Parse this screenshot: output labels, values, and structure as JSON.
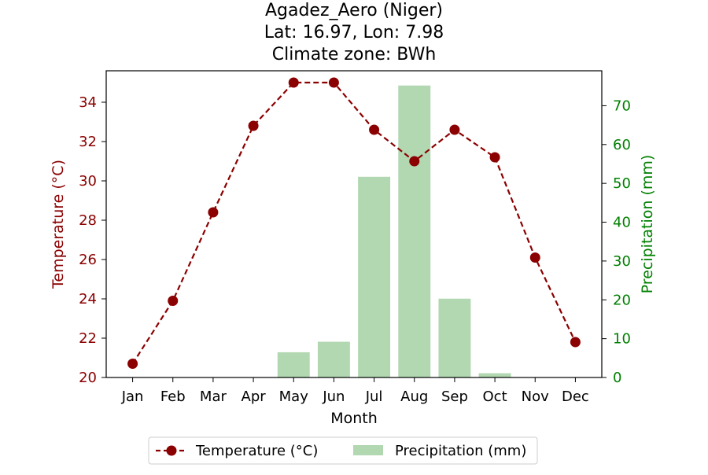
{
  "chart_data": {
    "type": "bar+line",
    "title": [
      "Agadez_Aero (Niger)",
      "Lat: 16.97, Lon: 7.98",
      "Climate zone: BWh"
    ],
    "xlabel": "Month",
    "ylabel_left": "Temperature (°C)",
    "ylabel_right": "Precipitation (mm)",
    "categories": [
      "Jan",
      "Feb",
      "Mar",
      "Apr",
      "May",
      "Jun",
      "Jul",
      "Aug",
      "Sep",
      "Oct",
      "Nov",
      "Dec"
    ],
    "series": [
      {
        "name": "Temperature (°C)",
        "type": "line",
        "axis": "left",
        "color": "#8b0000",
        "values": [
          20.7,
          23.9,
          28.4,
          32.8,
          35.0,
          35.0,
          32.6,
          31.0,
          32.6,
          31.2,
          26.1,
          21.8
        ]
      },
      {
        "name": "Precipitation (mm)",
        "type": "bar",
        "axis": "right",
        "color": "#b2d8b2",
        "values": [
          0,
          0,
          0,
          0,
          6.5,
          9.2,
          51.7,
          75.2,
          20.3,
          1.1,
          0,
          0
        ]
      }
    ],
    "ylim_left": [
      20,
      35.6
    ],
    "ylim_right": [
      0,
      79
    ],
    "yticks_left": [
      "20",
      "22",
      "24",
      "26",
      "28",
      "30",
      "32",
      "34"
    ],
    "yticks_right": [
      "0",
      "10",
      "20",
      "30",
      "40",
      "50",
      "60",
      "70"
    ],
    "left_axis_color": "#8b0000",
    "right_axis_color": "#008000",
    "grid": false,
    "legend_position": "bottom-center"
  }
}
